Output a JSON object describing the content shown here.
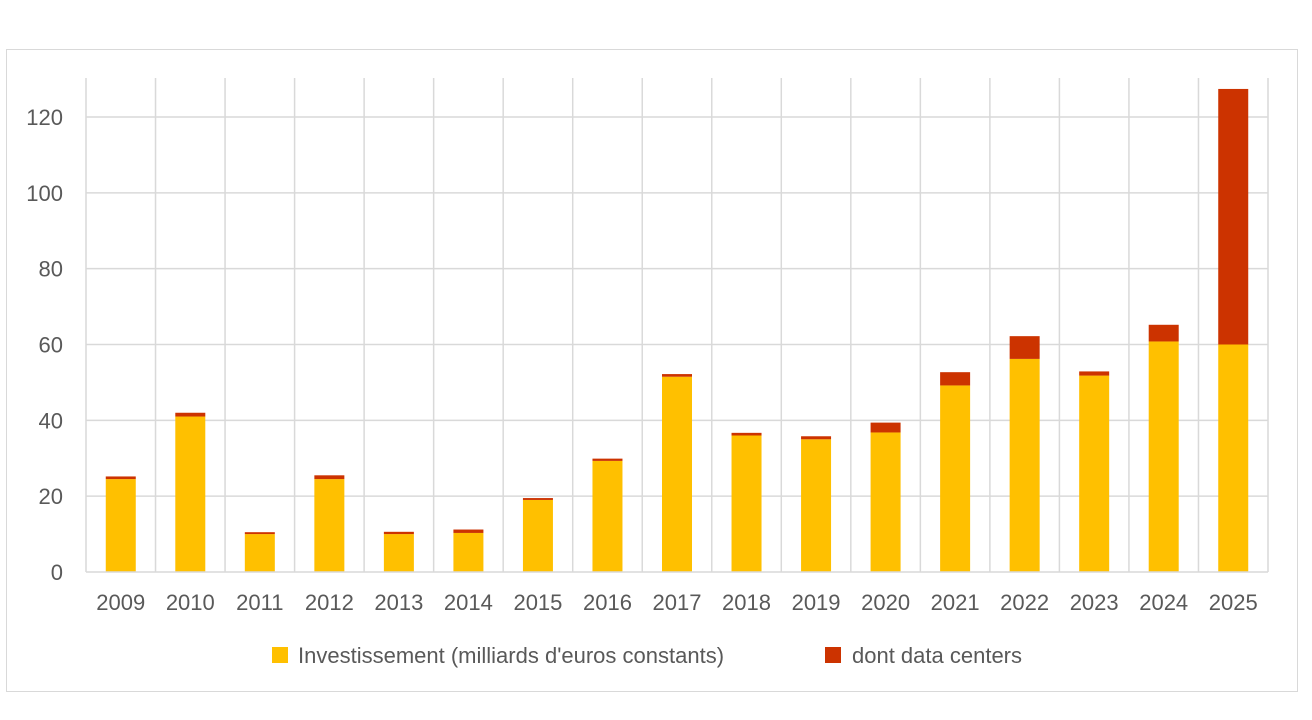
{
  "chart_data": {
    "type": "bar",
    "stacked": true,
    "title": "",
    "xlabel": "",
    "ylabel": "",
    "ylim": [
      0,
      130
    ],
    "yticks": [
      0,
      20,
      40,
      60,
      80,
      100,
      120
    ],
    "grid": true,
    "legend_position": "bottom",
    "categories": [
      "2009",
      "2010",
      "2011",
      "2012",
      "2013",
      "2014",
      "2015",
      "2016",
      "2017",
      "2018",
      "2019",
      "2020",
      "2021",
      "2022",
      "2023",
      "2024",
      "2025"
    ],
    "series": [
      {
        "name": "Investissement (milliards d'euros constants)",
        "color": "#FFC000",
        "values": [
          24.5,
          41,
          10,
          24.5,
          10,
          10.3,
          19,
          29.3,
          51.5,
          36,
          35,
          36.8,
          49.2,
          56.2,
          51.8,
          60.8,
          60
        ]
      },
      {
        "name": "dont data centers",
        "color": "#CC3300",
        "values": [
          0.7,
          1,
          0.5,
          1,
          0.6,
          0.9,
          0.5,
          0.6,
          0.7,
          0.7,
          0.8,
          2.6,
          3.5,
          6,
          1.1,
          4.4,
          67.4
        ]
      }
    ]
  }
}
